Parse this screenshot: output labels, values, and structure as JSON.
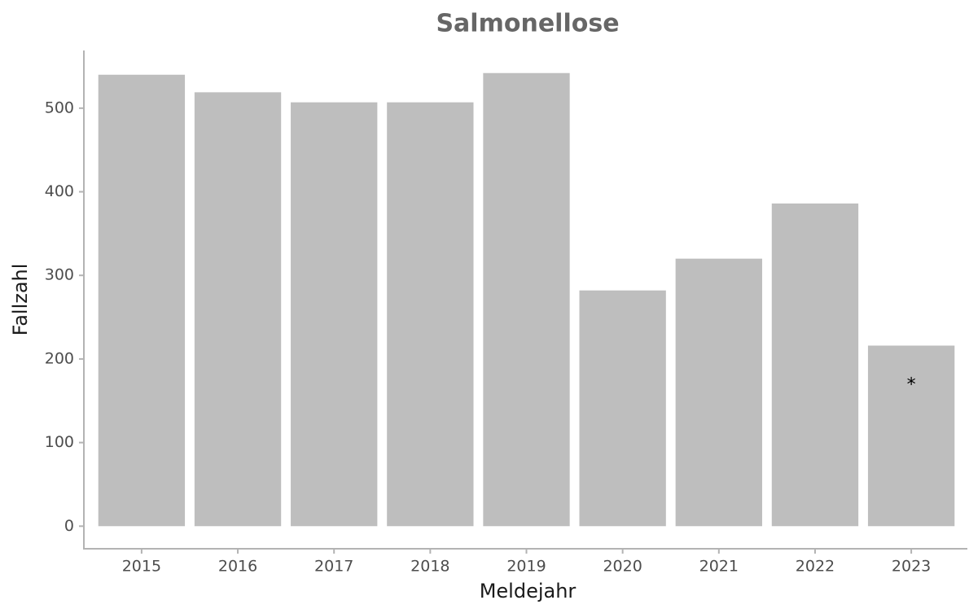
{
  "chart_data": {
    "type": "bar",
    "title": "Salmonellose",
    "x_label": "Meldejahr",
    "y_label": "Fallzahl",
    "categories": [
      "2015",
      "2016",
      "2017",
      "2018",
      "2019",
      "2020",
      "2021",
      "2022",
      "2023"
    ],
    "values": [
      540,
      519,
      507,
      507,
      542,
      282,
      320,
      386,
      216
    ],
    "color": "#bebebe",
    "annotations": [
      {
        "text": "*",
        "category": 8
      }
    ],
    "ylim": [
      -27,
      569
    ],
    "yticks": [
      0,
      100,
      200,
      300,
      400,
      500
    ],
    "grid": false
  }
}
